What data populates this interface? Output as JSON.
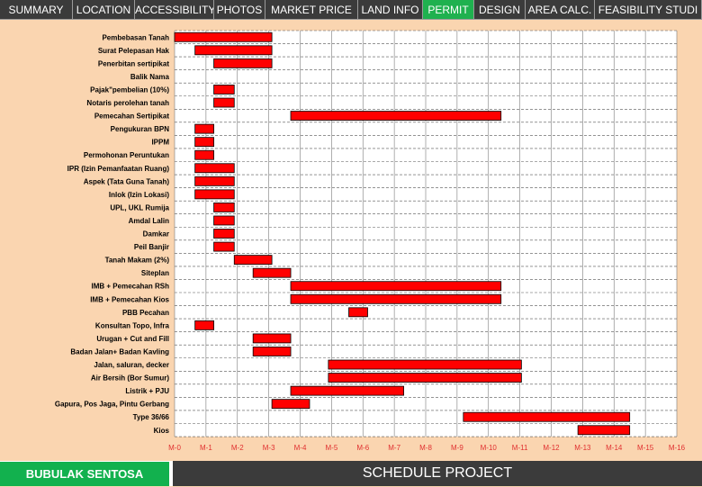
{
  "nav": {
    "tabs": [
      {
        "label": "SUMMARY",
        "active": false
      },
      {
        "label": "LOCATION",
        "active": false
      },
      {
        "label": "ACCESSIBILITY",
        "active": false
      },
      {
        "label": "PHOTOS",
        "active": false
      },
      {
        "label": "MARKET PRICE",
        "active": false
      },
      {
        "label": "LAND INFO",
        "active": false
      },
      {
        "label": "PERMIT",
        "active": true
      },
      {
        "label": "DESIGN",
        "active": false
      },
      {
        "label": "AREA CALC.",
        "active": false
      },
      {
        "label": "FEASIBILITY  STUDI",
        "active": false
      }
    ],
    "active_color": "#1fb14f"
  },
  "footer": {
    "project_name": "BUBULAK SENTOSA",
    "page_title": "SCHEDULE PROJECT"
  },
  "chart_data": {
    "type": "bar",
    "subtype": "gantt",
    "title": "",
    "xlabel": "",
    "ylabel": "",
    "x_ticks": [
      "M-0",
      "M-1",
      "M-2",
      "M-3",
      "M-4",
      "M-5",
      "M-6",
      "M-7",
      "M-8",
      "M-9",
      "M-10",
      "M-11",
      "M-12",
      "M-13",
      "M-14",
      "M-15",
      "M-16"
    ],
    "xlim": [
      0,
      16
    ],
    "grid": true,
    "bar_color": "#ff0000",
    "tick_color": "#e03030",
    "tasks": [
      {
        "name": "Pembebasan Tanah",
        "start": 0.0,
        "end": 3.1
      },
      {
        "name": "Surat Pelepasan Hak",
        "start": 0.65,
        "end": 3.1
      },
      {
        "name": "Penerbitan sertipikat",
        "start": 1.25,
        "end": 3.1
      },
      {
        "name": "Balik Nama",
        "start": null,
        "end": null
      },
      {
        "name": "Pajak\"pembelian (10%)",
        "start": 1.25,
        "end": 1.9
      },
      {
        "name": "Notaris perolehan tanah",
        "start": 1.25,
        "end": 1.9
      },
      {
        "name": "Pemecahan Sertipikat",
        "start": 3.7,
        "end": 10.4
      },
      {
        "name": "Pengukuran BPN",
        "start": 0.65,
        "end": 1.25
      },
      {
        "name": "IPPM",
        "start": 0.65,
        "end": 1.25
      },
      {
        "name": "Permohonan Peruntukan",
        "start": 0.65,
        "end": 1.25
      },
      {
        "name": "IPR (Izin Pemanfaatan Ruang)",
        "start": 0.65,
        "end": 1.9
      },
      {
        "name": "Aspek (Tata Guna Tanah)",
        "start": 0.65,
        "end": 1.9
      },
      {
        "name": "Inlok (Izin Lokasi)",
        "start": 0.65,
        "end": 1.9
      },
      {
        "name": "UPL, UKL Rumija",
        "start": 1.25,
        "end": 1.9
      },
      {
        "name": "Amdal Lalin",
        "start": 1.25,
        "end": 1.9
      },
      {
        "name": "Damkar",
        "start": 1.25,
        "end": 1.9
      },
      {
        "name": "Peil Banjir",
        "start": 1.25,
        "end": 1.9
      },
      {
        "name": "Tanah Makam (2%)",
        "start": 1.9,
        "end": 3.1
      },
      {
        "name": "Siteplan",
        "start": 2.5,
        "end": 3.7
      },
      {
        "name": "IMB + Pemecahan RSh",
        "start": 3.7,
        "end": 10.4
      },
      {
        "name": "IMB + Pemecahan Kios",
        "start": 3.7,
        "end": 10.4
      },
      {
        "name": "PBB Pecahan",
        "start": 5.55,
        "end": 6.15
      },
      {
        "name": "Konsultan Topo, Infra",
        "start": 0.65,
        "end": 1.25
      },
      {
        "name": "Urugan + Cut and Fill",
        "start": 2.5,
        "end": 3.7
      },
      {
        "name": "Badan Jalan+ Badan Kavling",
        "start": 2.5,
        "end": 3.7
      },
      {
        "name": "Jalan, saluran, decker",
        "start": 4.9,
        "end": 11.05
      },
      {
        "name": "Air Bersih (Bor Sumur)",
        "start": 4.9,
        "end": 11.05
      },
      {
        "name": "Listrik + PJU",
        "start": 3.7,
        "end": 7.3
      },
      {
        "name": "Gapura, Pos Jaga, Pintu Gerbang",
        "start": 3.1,
        "end": 4.3
      },
      {
        "name": "Type 36/66",
        "start": 9.2,
        "end": 14.5
      },
      {
        "name": "Kios",
        "start": 12.85,
        "end": 14.5
      }
    ]
  }
}
